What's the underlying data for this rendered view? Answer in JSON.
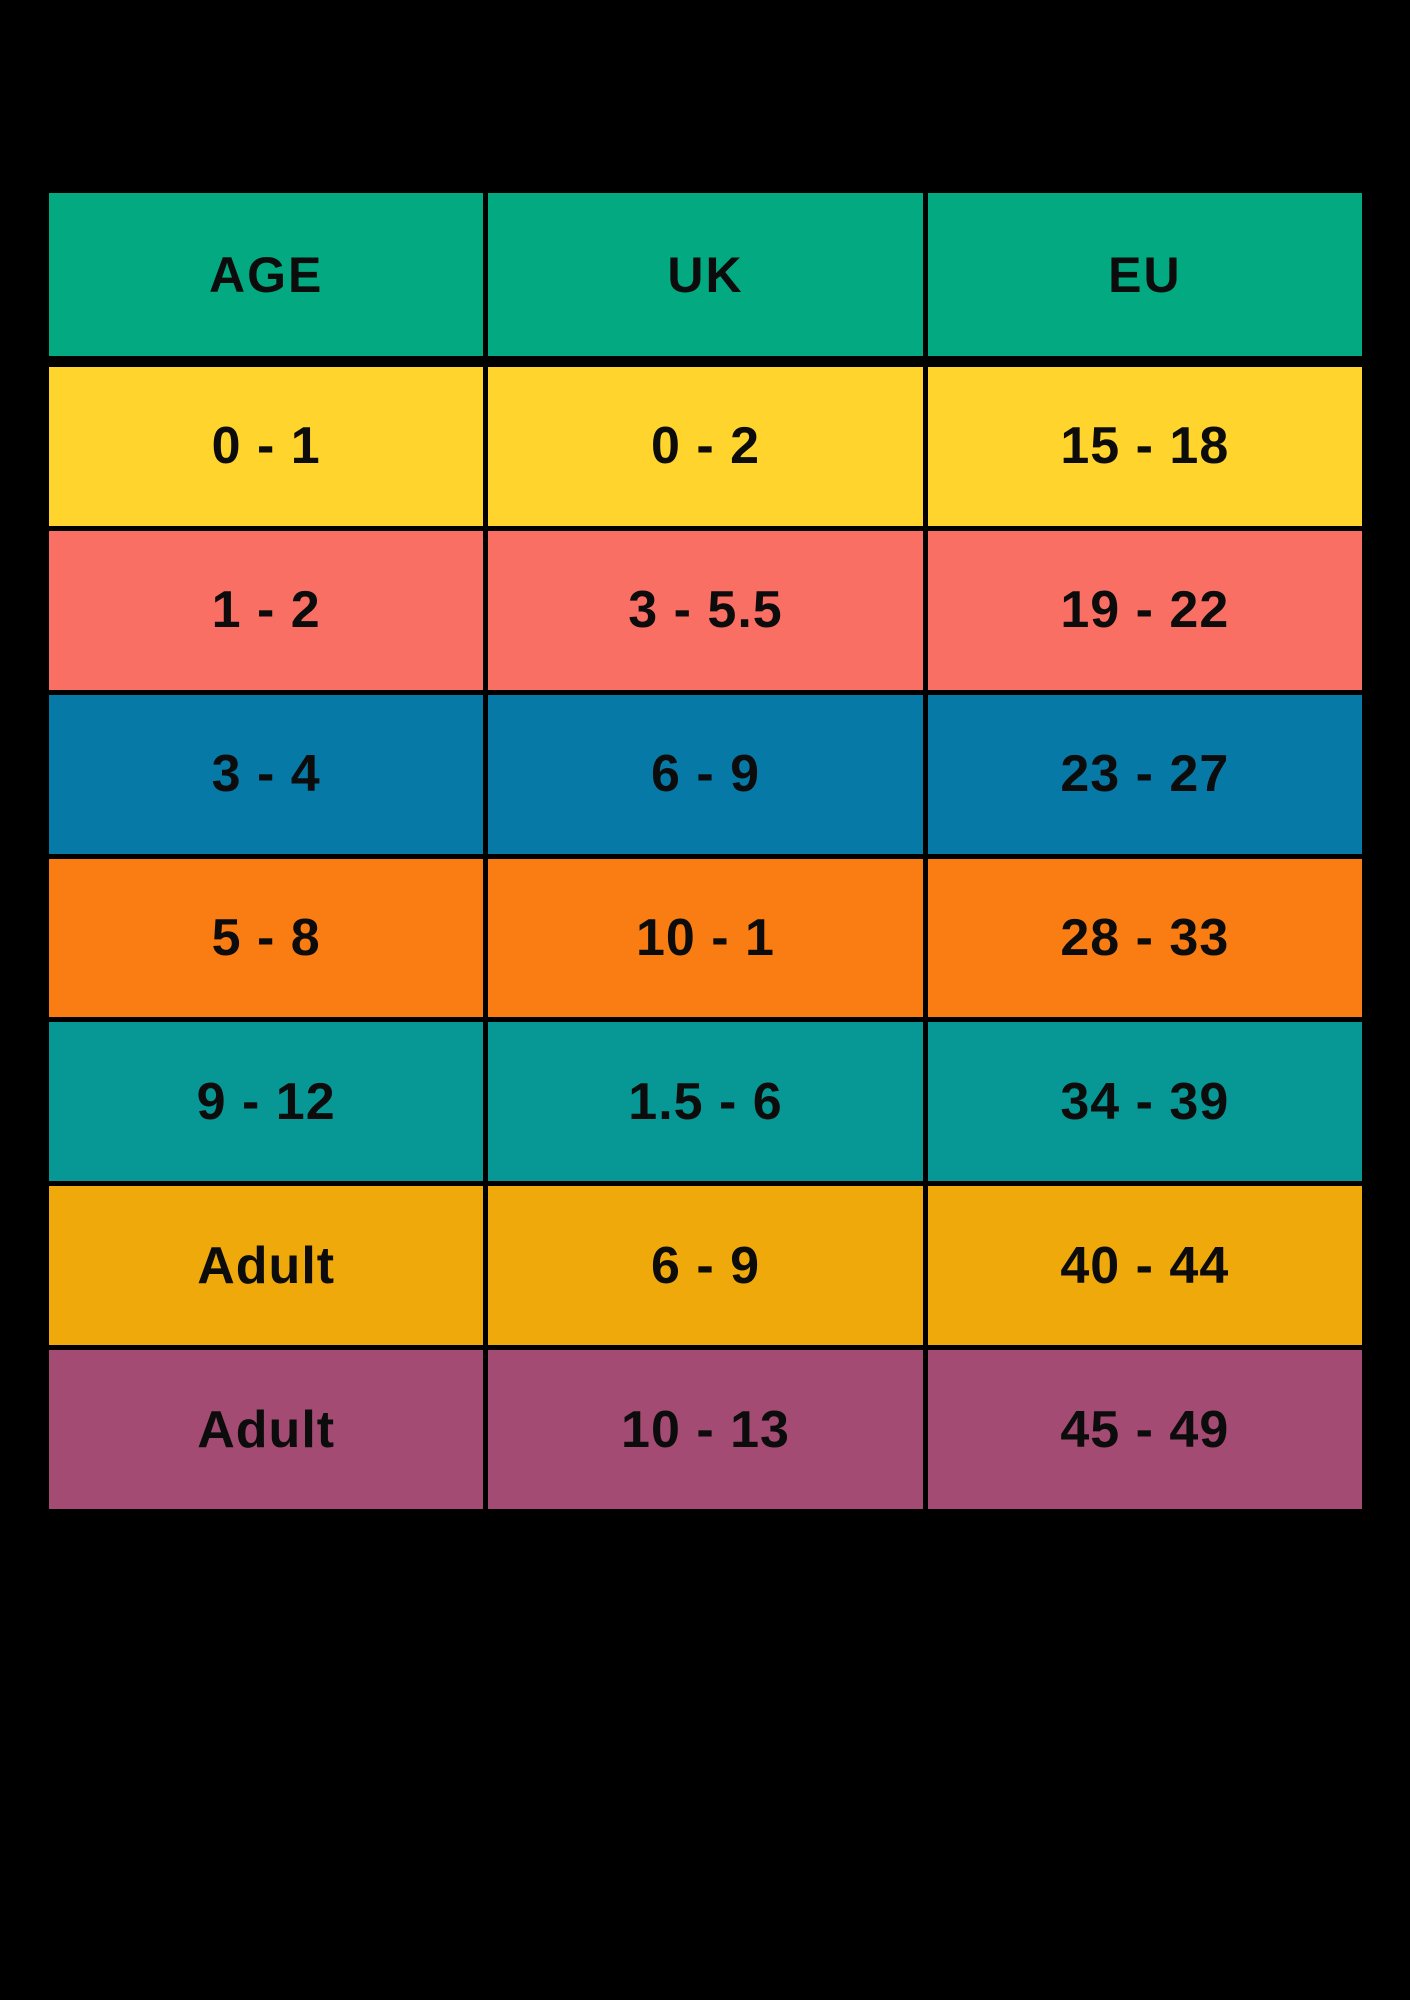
{
  "page": {
    "background": "#000000"
  },
  "table": {
    "grid_color": "#000000",
    "text_color": "#0c0c0c"
  },
  "chart_data": {
    "type": "table",
    "title": "",
    "columns": [
      "AGE",
      "UK",
      "EU"
    ],
    "rows": [
      [
        "0 - 1",
        "0 - 2",
        "15 - 18"
      ],
      [
        "1 - 2",
        "3 - 5.5",
        "19 - 22"
      ],
      [
        "3 - 4",
        "6 - 9",
        "23 - 27"
      ],
      [
        "5 - 8",
        "10 - 1",
        "28 - 33"
      ],
      [
        "9 - 12",
        "1.5 - 6",
        "34 - 39"
      ],
      [
        "Adult",
        "6 - 9",
        "40 - 44"
      ],
      [
        "Adult",
        "10 - 13",
        "45 - 49"
      ]
    ],
    "header_color": "#03A980",
    "row_colors": [
      "#FFD42C",
      "#F96F63",
      "#0779A6",
      "#F97D13",
      "#079795",
      "#F0A90B",
      "#A44B74"
    ],
    "layout_hints": {
      "grid": "black 5px separators, thicker rule under header",
      "background": "black",
      "text": "black, centered in cells"
    }
  }
}
